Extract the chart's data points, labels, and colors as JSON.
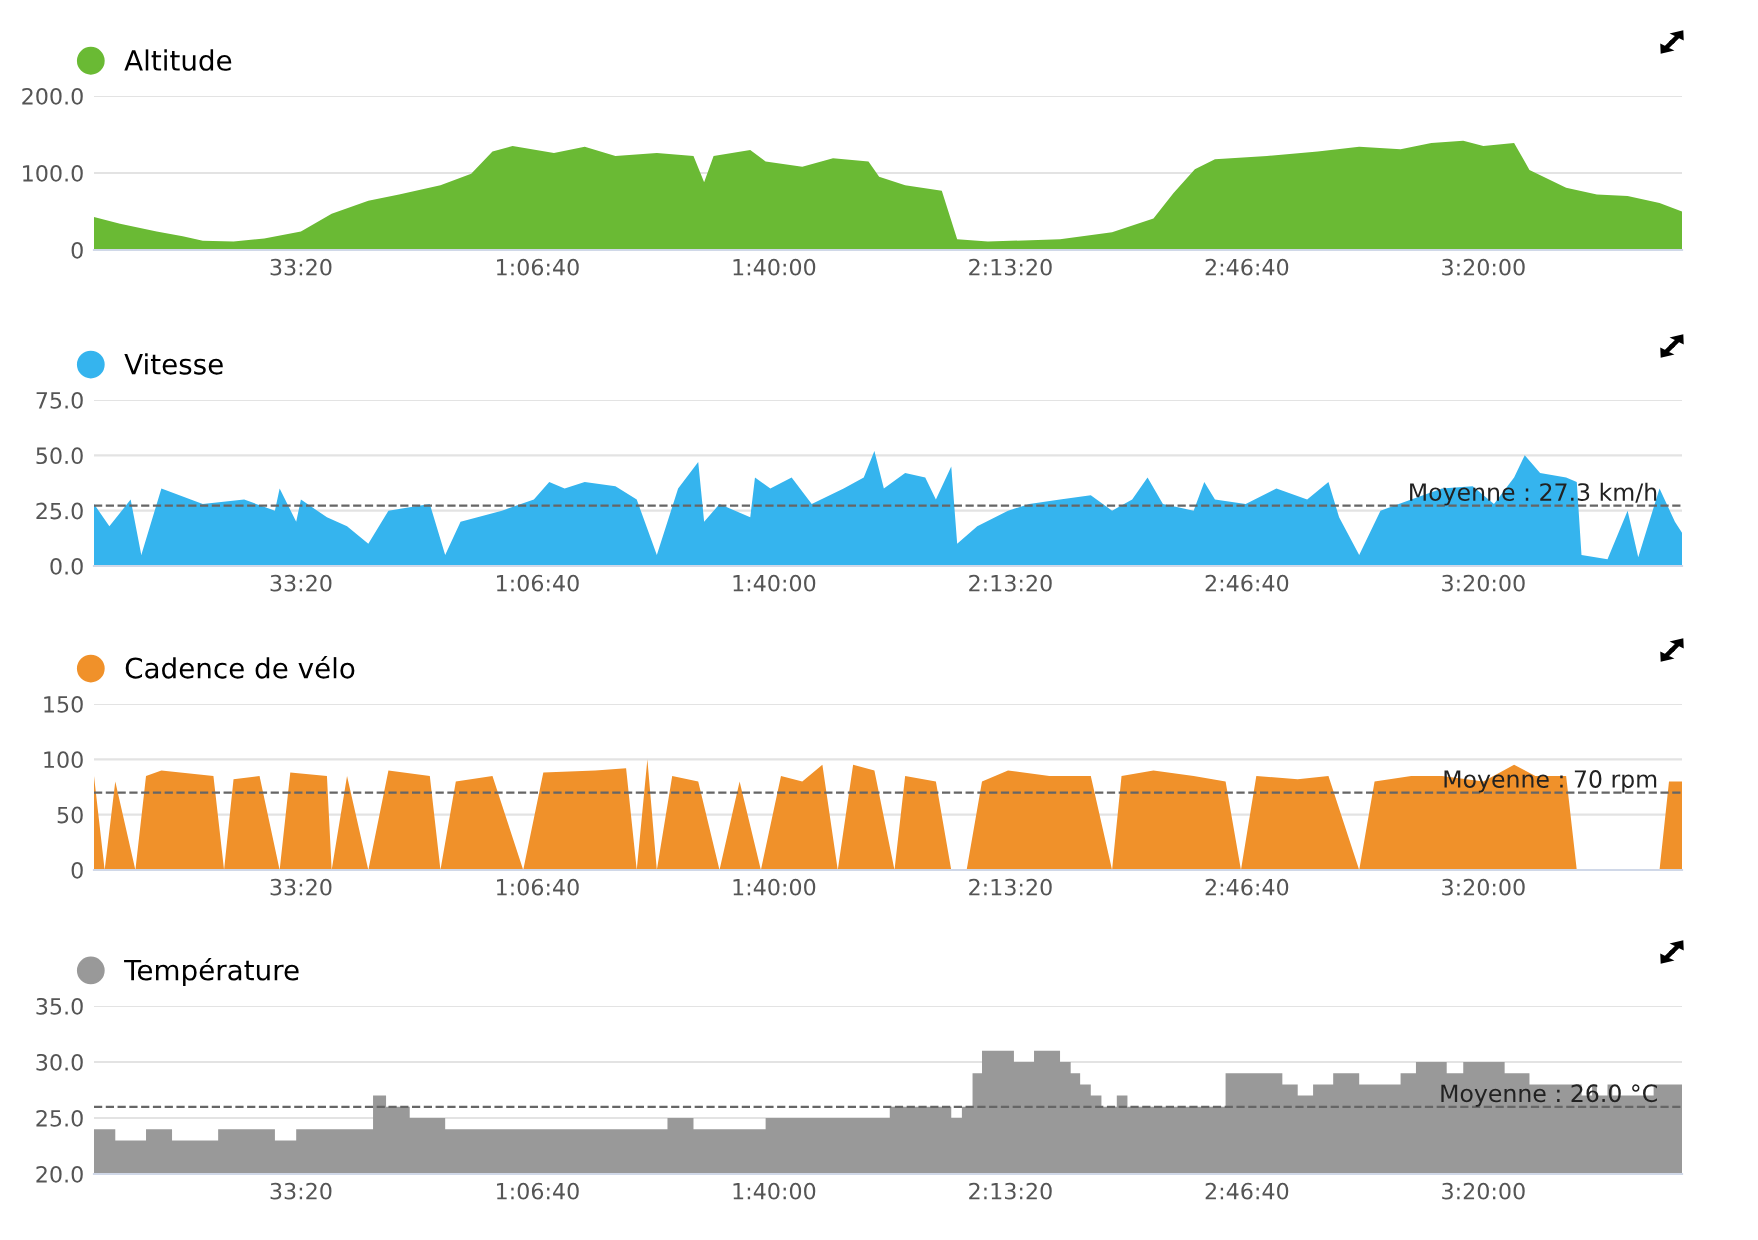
{
  "chart_data": [
    {
      "type": "area",
      "legend": "top left",
      "grid": "y",
      "xlim": [
        250,
        13680
      ],
      "ylim": [
        0,
        200
      ],
      "xticks": [
        {
          "value": 2000,
          "label": "33:20"
        },
        {
          "value": 4000,
          "label": "1:06:40"
        },
        {
          "value": 6000,
          "label": "1:40:00"
        },
        {
          "value": 8000,
          "label": "2:13:20"
        },
        {
          "value": 10000,
          "label": "2:46:40"
        },
        {
          "value": 12000,
          "label": "3:20:00"
        }
      ],
      "yticks": [
        0,
        {
          "value": 100,
          "label": "100.0"
        },
        {
          "value": 200,
          "label": "200.0"
        }
      ],
      "series": [
        {
          "name": "Altitude",
          "color": "#6aba34",
          "x": [
            250,
            470,
            780,
            1000,
            1170,
            1430,
            1690,
            2000,
            2260,
            2570,
            2830,
            3180,
            3440,
            3620,
            3790,
            4140,
            4400,
            4660,
            5010,
            5320,
            5410,
            5490,
            5800,
            5930,
            6240,
            6500,
            6800,
            6890,
            7110,
            7420,
            7550,
            7810,
            8420,
            8860,
            9210,
            9380,
            9560,
            9730,
            10170,
            10600,
            10950,
            11300,
            11560,
            11830,
            12000,
            12260,
            12390,
            12700,
            12960,
            13220,
            13490,
            13680
          ],
          "values": [
            43,
            34,
            24,
            18,
            12,
            11,
            15,
            24,
            47,
            64,
            72,
            84,
            99,
            128,
            135,
            126,
            134,
            122,
            126,
            122,
            88,
            122,
            130,
            115,
            108,
            119,
            115,
            95,
            84,
            77,
            14,
            11,
            14,
            23,
            41,
            74,
            105,
            118,
            122,
            128,
            134,
            131,
            139,
            142,
            135,
            139,
            104,
            81,
            72,
            70,
            61,
            50
          ]
        }
      ]
    },
    {
      "type": "area",
      "legend": "top left",
      "grid": "y",
      "xlim": [
        250,
        13680
      ],
      "ylim": [
        0,
        75
      ],
      "xticks": [
        {
          "value": 2000,
          "label": "33:20"
        },
        {
          "value": 4000,
          "label": "1:06:40"
        },
        {
          "value": 6000,
          "label": "1:40:00"
        },
        {
          "value": 8000,
          "label": "2:13:20"
        },
        {
          "value": 10000,
          "label": "2:46:40"
        },
        {
          "value": 12000,
          "label": "3:20:00"
        }
      ],
      "yticks": [
        {
          "value": 0,
          "label": "0.0"
        },
        {
          "value": 25,
          "label": "25.0"
        },
        {
          "value": 50,
          "label": "50.0"
        },
        {
          "value": 75,
          "label": "75.0"
        }
      ],
      "ref_lines": [
        {
          "axis": "y",
          "value": 27.3,
          "label": "Moyenne : 27.3 km/h",
          "line_style": "dashed",
          "color": "#666666"
        }
      ],
      "series": [
        {
          "name": "Vitesse",
          "color": "#35b4ee",
          "x": [
            250,
            380,
            560,
            650,
            820,
            1170,
            1520,
            1780,
            1820,
            1960,
            2000,
            2220,
            2390,
            2570,
            2740,
            3090,
            3220,
            3350,
            3700,
            3970,
            4100,
            4230,
            4400,
            4660,
            4840,
            5010,
            5190,
            5360,
            5410,
            5540,
            5800,
            5840,
            5970,
            6150,
            6320,
            6590,
            6760,
            6850,
            6930,
            7110,
            7280,
            7370,
            7500,
            7550,
            7720,
            7980,
            8160,
            8420,
            8680,
            8860,
            9030,
            9160,
            9290,
            9550,
            9640,
            9730,
            9990,
            10250,
            10510,
            10690,
            10780,
            10950,
            11130,
            11390,
            11650,
            11910,
            12090,
            12260,
            12350,
            12480,
            12700,
            12790,
            12830,
            13050,
            13220,
            13310,
            13490,
            13620,
            13680
          ],
          "values": [
            28,
            18,
            30,
            5,
            35,
            28,
            30,
            25,
            35,
            20,
            30,
            22,
            18,
            10,
            25,
            28,
            5,
            20,
            25,
            30,
            38,
            35,
            38,
            36,
            30,
            5,
            35,
            47,
            20,
            28,
            22,
            40,
            35,
            40,
            28,
            35,
            40,
            52,
            35,
            42,
            40,
            30,
            45,
            10,
            18,
            25,
            28,
            30,
            32,
            25,
            30,
            40,
            28,
            25,
            38,
            30,
            28,
            35,
            30,
            38,
            22,
            5,
            25,
            30,
            35,
            36,
            28,
            40,
            50,
            42,
            40,
            38,
            5,
            3,
            25,
            4,
            35,
            20,
            15
          ]
        }
      ]
    },
    {
      "type": "area",
      "legend": "top left",
      "grid": "y",
      "xlim": [
        250,
        13680
      ],
      "ylim": [
        0,
        150
      ],
      "xticks": [
        {
          "value": 2000,
          "label": "33:20"
        },
        {
          "value": 4000,
          "label": "1:06:40"
        },
        {
          "value": 6000,
          "label": "1:40:00"
        },
        {
          "value": 8000,
          "label": "2:13:20"
        },
        {
          "value": 10000,
          "label": "2:46:40"
        },
        {
          "value": 12000,
          "label": "3:20:00"
        }
      ],
      "yticks": [
        0,
        50,
        100,
        150
      ],
      "ref_lines": [
        {
          "axis": "y",
          "value": 70,
          "label": "Moyenne : 70 rpm",
          "line_style": "dashed",
          "color": "#666666"
        }
      ],
      "series": [
        {
          "name": "Cadence de vélo",
          "color": "#f0912a",
          "x": [
            250,
            340,
            430,
            600,
            690,
            820,
            1260,
            1350,
            1430,
            1650,
            1820,
            1910,
            2220,
            2260,
            2390,
            2570,
            2740,
            3090,
            3180,
            3310,
            3620,
            3880,
            4050,
            4490,
            4750,
            4840,
            4930,
            5010,
            5140,
            5360,
            5540,
            5710,
            5890,
            6060,
            6240,
            6410,
            6540,
            6670,
            6850,
            7020,
            7110,
            7370,
            7500,
            7630,
            7760,
            7980,
            8330,
            8680,
            8860,
            8940,
            9210,
            9550,
            9820,
            9950,
            10080,
            10430,
            10690,
            10950,
            11080,
            11390,
            11650,
            12000,
            12260,
            12440,
            12700,
            12790,
            13050,
            13310,
            13490,
            13570,
            13680
          ],
          "values": [
            85,
            0,
            80,
            0,
            85,
            90,
            85,
            0,
            82,
            85,
            0,
            88,
            85,
            0,
            85,
            0,
            90,
            85,
            0,
            80,
            85,
            0,
            88,
            90,
            92,
            0,
            100,
            0,
            85,
            80,
            0,
            80,
            0,
            85,
            80,
            95,
            0,
            95,
            90,
            0,
            85,
            80,
            0,
            0,
            80,
            90,
            85,
            85,
            0,
            85,
            90,
            85,
            80,
            0,
            85,
            82,
            85,
            0,
            80,
            85,
            85,
            80,
            95,
            85,
            85,
            0,
            0,
            0,
            0,
            80,
            80
          ]
        }
      ]
    },
    {
      "type": "area",
      "legend": "top left",
      "grid": "y",
      "xlim": [
        250,
        13680
      ],
      "ylim": [
        20,
        35
      ],
      "xticks": [
        {
          "value": 2000,
          "label": "33:20"
        },
        {
          "value": 4000,
          "label": "1:06:40"
        },
        {
          "value": 6000,
          "label": "1:40:00"
        },
        {
          "value": 8000,
          "label": "2:13:20"
        },
        {
          "value": 10000,
          "label": "2:46:40"
        },
        {
          "value": 12000,
          "label": "3:20:00"
        }
      ],
      "yticks": [
        {
          "value": 20,
          "label": "20.0"
        },
        {
          "value": 25,
          "label": "25.0"
        },
        {
          "value": 30,
          "label": "30.0"
        },
        {
          "value": 35,
          "label": "35.0"
        }
      ],
      "ref_lines": [
        {
          "axis": "y",
          "value": 26.0,
          "label": "Moyenne : 26.0 °C",
          "line_style": "dashed",
          "color": "#666666"
        }
      ],
      "series": [
        {
          "name": "Température",
          "color": "#999999",
          "x": [
            250,
            430,
            430,
            690,
            690,
            910,
            910,
            1300,
            1300,
            1780,
            1780,
            1960,
            1960,
            2610,
            2610,
            2720,
            2720,
            2920,
            2920,
            3220,
            3220,
            5100,
            5100,
            5320,
            5320,
            5930,
            5930,
            6980,
            6980,
            7500,
            7500,
            7590,
            7590,
            7680,
            7680,
            7760,
            7760,
            8030,
            8030,
            8200,
            8200,
            8420,
            8420,
            8510,
            8510,
            8590,
            8590,
            8680,
            8680,
            8770,
            8770,
            8900,
            8900,
            8990,
            8990,
            9820,
            9820,
            10300,
            10300,
            10430,
            10430,
            10560,
            10560,
            10730,
            10730,
            10950,
            10950,
            11300,
            11300,
            11430,
            11430,
            11690,
            11690,
            11830,
            11830,
            12180,
            12180,
            12390,
            12390,
            12830,
            12830,
            12920,
            12920,
            12960,
            12960,
            13050,
            13050,
            13090,
            13090,
            13440,
            13440,
            13680
          ],
          "values": [
            24,
            24,
            23,
            23,
            24,
            24,
            23,
            23,
            24,
            24,
            23,
            23,
            24,
            24,
            27,
            27,
            26,
            26,
            25,
            25,
            24,
            24,
            25,
            25,
            24,
            24,
            25,
            25,
            26,
            26,
            25,
            25,
            26,
            26,
            29,
            29,
            31,
            31,
            30,
            30,
            31,
            31,
            30,
            30,
            29,
            29,
            28,
            28,
            27,
            27,
            26,
            26,
            27,
            27,
            26,
            26,
            29,
            29,
            28,
            28,
            27,
            27,
            28,
            28,
            29,
            29,
            28,
            28,
            29,
            29,
            30,
            30,
            29,
            29,
            30,
            30,
            29,
            29,
            28,
            28,
            27,
            27,
            28,
            28,
            27,
            27,
            28,
            28,
            27,
            27,
            28,
            28
          ]
        }
      ]
    }
  ]
}
